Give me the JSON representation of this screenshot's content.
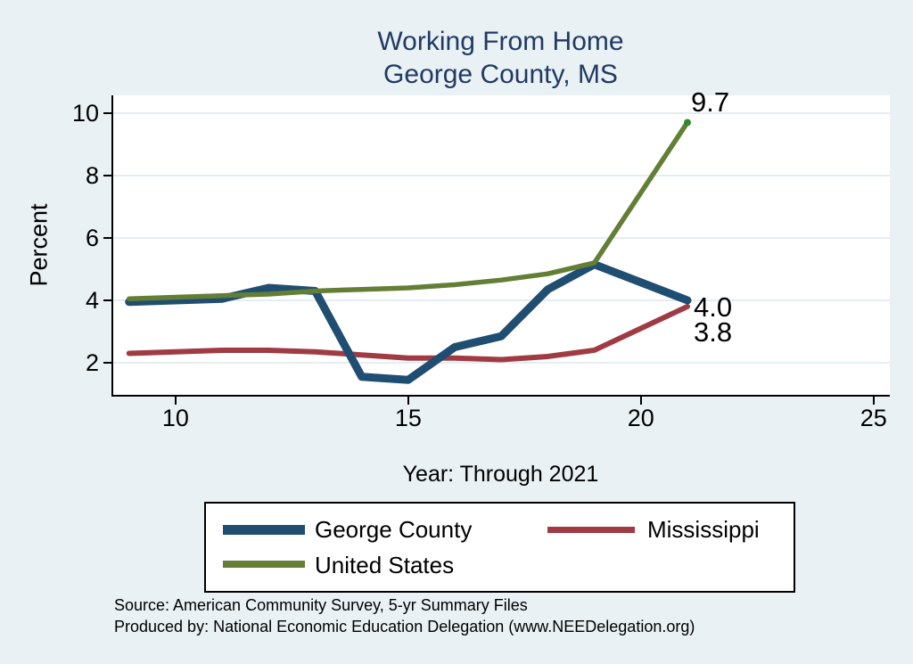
{
  "title": {
    "line1": "Working From Home",
    "line2": "George County, MS"
  },
  "chart_data": {
    "type": "line",
    "x": [
      9,
      10,
      11,
      12,
      13,
      14,
      15,
      16,
      17,
      18,
      19,
      21
    ],
    "series": [
      {
        "name": "George County",
        "color": "#204e72",
        "width": 9,
        "values": [
          3.95,
          4.0,
          4.05,
          4.4,
          4.3,
          1.55,
          1.45,
          2.5,
          2.85,
          4.35,
          5.15,
          4.0
        ],
        "end_label": "4.0",
        "end_marker": false
      },
      {
        "name": "Mississippi",
        "color": "#a03b44",
        "width": 6,
        "values": [
          2.3,
          2.35,
          2.4,
          2.4,
          2.35,
          2.25,
          2.15,
          2.15,
          2.1,
          2.2,
          2.4,
          3.8
        ],
        "end_label": "3.8",
        "end_marker": false
      },
      {
        "name": "United States",
        "color": "#637e35",
        "width": 5.5,
        "values": [
          4.05,
          4.1,
          4.15,
          4.2,
          4.3,
          4.35,
          4.4,
          4.5,
          4.65,
          4.85,
          5.2,
          9.7
        ],
        "end_label": "9.7",
        "end_marker": true
      }
    ],
    "xlabel": "Year: Through 2021",
    "ylabel": "Percent",
    "x_ticks": [
      10,
      15,
      20,
      25
    ],
    "y_ticks": [
      2,
      4,
      6,
      8,
      10
    ],
    "xlim": [
      8.66,
      25.35
    ],
    "ylim": [
      0.97,
      10.57
    ],
    "grid": "horizontal gridlines at y ticks",
    "legend_position": "bottom"
  },
  "legend": {
    "items": [
      {
        "label": "George County"
      },
      {
        "label": "Mississippi"
      },
      {
        "label": "United States"
      }
    ]
  },
  "source": {
    "line1": "Source: American Community Survey, 5-yr Summary Files",
    "line2": "Produced by: National Economic Education Delegation (www.NEEDelegation.org)"
  },
  "colors": {
    "background": "#e9f1f4",
    "plot_background": "#ffffff",
    "title": "#203a64",
    "grid": "#e4eef2",
    "axis": "#000000",
    "end_marker": "#2e8b2e"
  }
}
